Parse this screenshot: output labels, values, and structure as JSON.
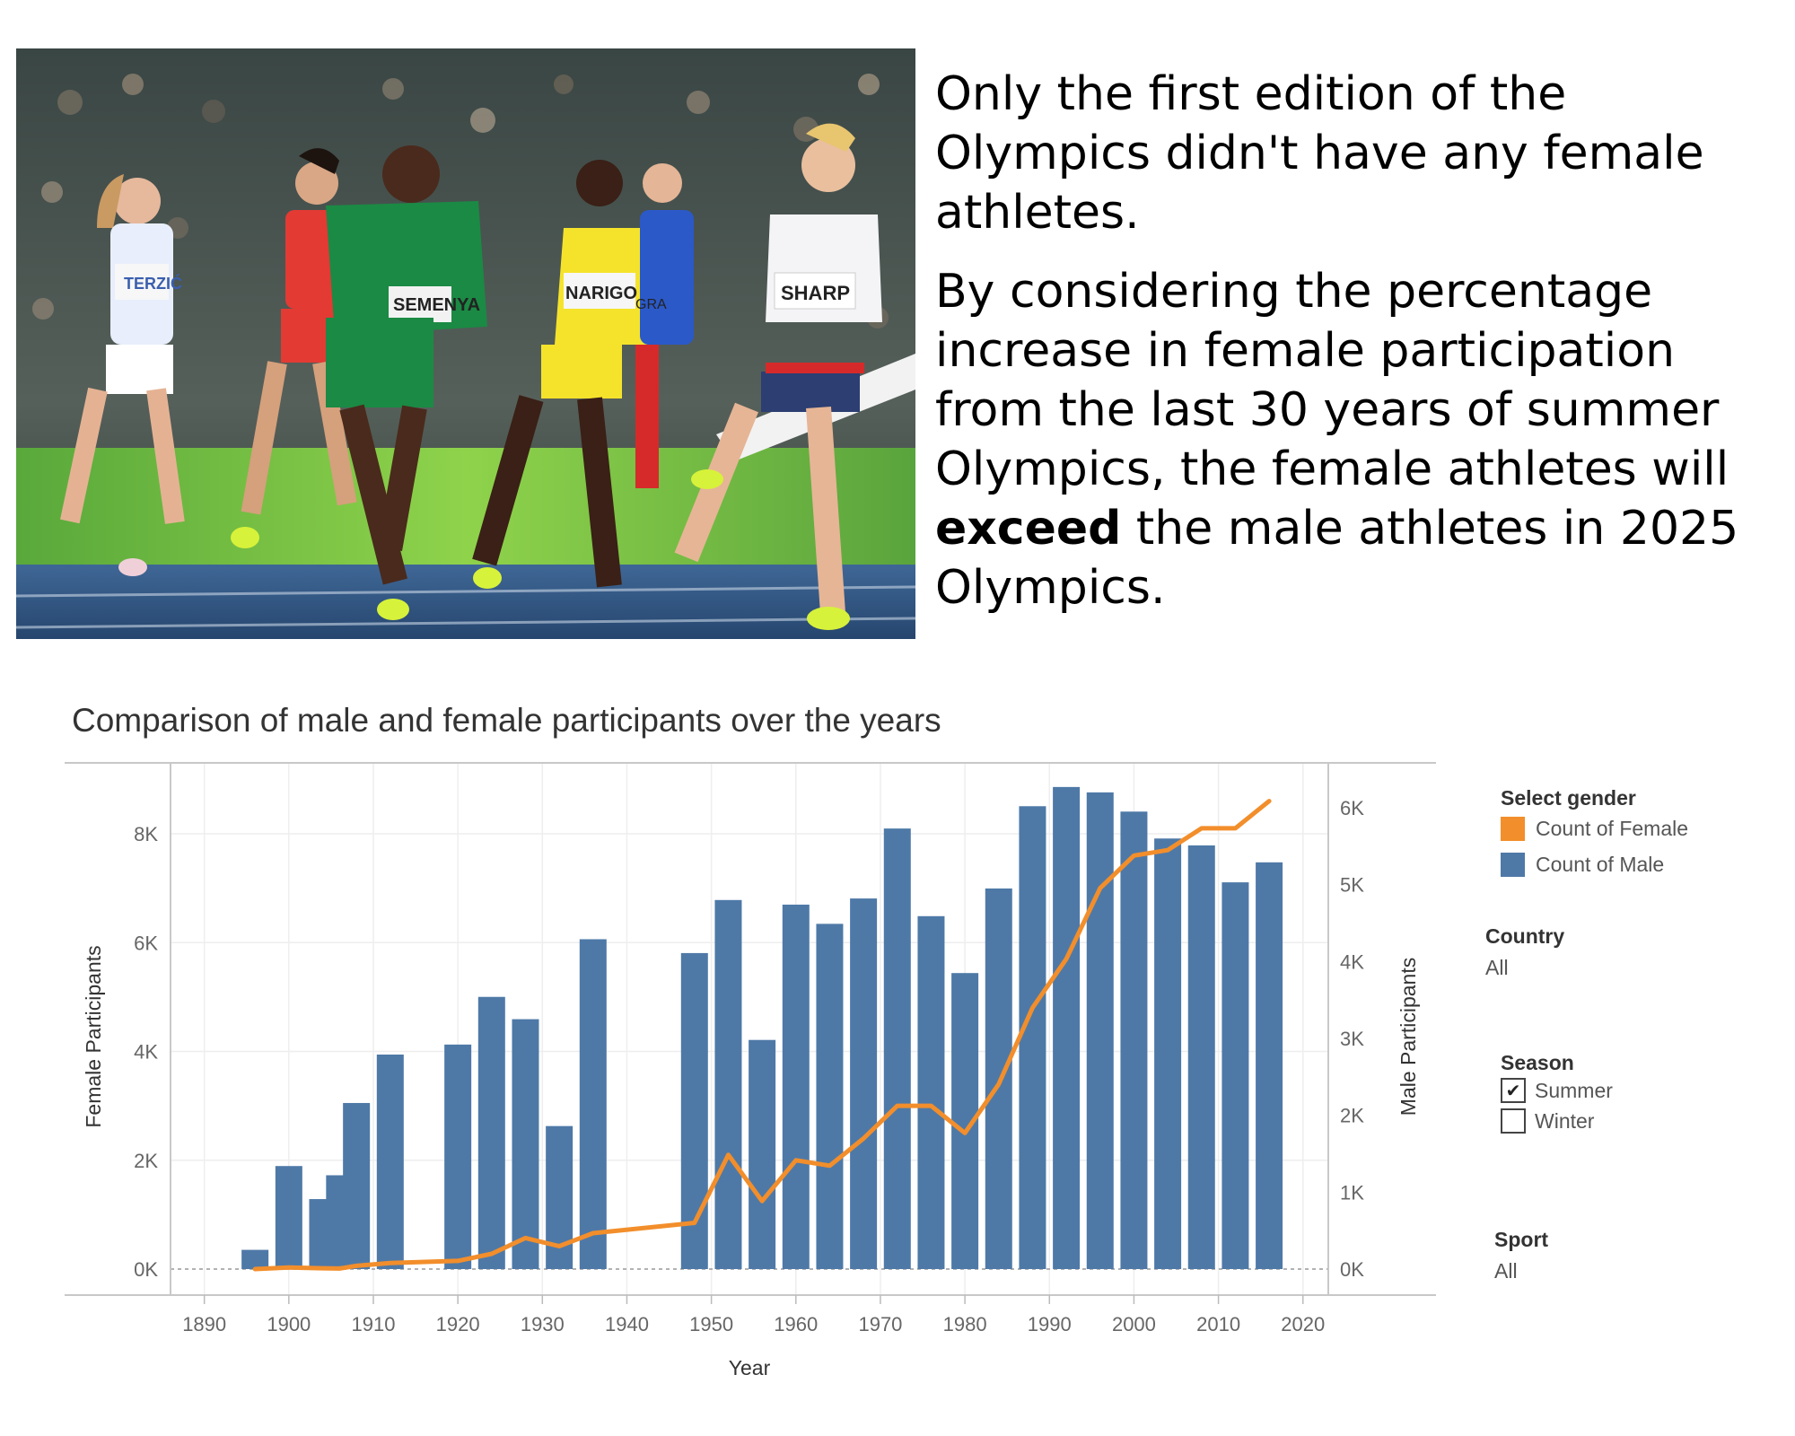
{
  "story": {
    "p1": "Only the first edition of the Olympics didn't have any female athletes.",
    "p2_pre": "By considering the percentage increase in female participation from the last 30 years of summer Olympics, the female athletes will ",
    "p2_bold": "exceed",
    "p2_post": " the male athletes in 2025 Olympics."
  },
  "photo": {
    "bibs": [
      "TERZIĆ",
      "SEMENYA",
      "NARIGO",
      "SHARP",
      "GRA"
    ],
    "colors": {
      "crowd": "#2d3b3a",
      "track": "#34567e",
      "banner": "#7cc442"
    }
  },
  "legend": {
    "title": "Select gender",
    "items": [
      {
        "label": "Count of Female",
        "color": "#f28e2b"
      },
      {
        "label": "Count of Male",
        "color": "#4e79a7"
      }
    ]
  },
  "filters": {
    "country": {
      "title": "Country",
      "value": "All"
    },
    "season": {
      "title": "Season",
      "options": [
        {
          "label": "Summer",
          "checked": true
        },
        {
          "label": "Winter",
          "checked": false
        }
      ]
    },
    "sport": {
      "title": "Sport",
      "value": "All"
    }
  },
  "chart_data": {
    "type": "bar",
    "title": "Comparison of male and female participants over the years",
    "xlabel": "Year",
    "ylabel_left": "Female Participants",
    "ylabel_right": "Male Participants",
    "x_ticks": [
      1890,
      1900,
      1910,
      1920,
      1930,
      1940,
      1950,
      1960,
      1970,
      1980,
      1990,
      2000,
      2010,
      2020
    ],
    "x_range": [
      1886,
      2023
    ],
    "y_left_range": [
      0,
      9000
    ],
    "y_left_ticks": [
      0,
      2000,
      4000,
      6000,
      8000
    ],
    "y_left_tick_labels": [
      "0K",
      "2K",
      "4K",
      "6K",
      "8K"
    ],
    "y_right_range": [
      0,
      6350
    ],
    "y_right_ticks": [
      0,
      1000,
      2000,
      3000,
      4000,
      5000,
      6000
    ],
    "y_right_tick_labels": [
      "0K",
      "1K",
      "2K",
      "3K",
      "4K",
      "5K",
      "6K"
    ],
    "grid": true,
    "series": [
      {
        "name": "Count of Male",
        "type": "bar",
        "axis": "right",
        "color": "#4e79a7",
        "x": [
          1896,
          1900,
          1904,
          1906,
          1908,
          1912,
          1920,
          1924,
          1928,
          1932,
          1936,
          1948,
          1952,
          1956,
          1960,
          1964,
          1968,
          1972,
          1976,
          1980,
          1984,
          1988,
          1992,
          1996,
          2000,
          2004,
          2008,
          2012,
          2016
        ],
        "values": [
          250,
          1340,
          910,
          1220,
          2160,
          2790,
          2920,
          3540,
          3250,
          1860,
          4290,
          4110,
          4800,
          2980,
          4740,
          4490,
          4820,
          5730,
          4590,
          3850,
          4950,
          6020,
          6270,
          6200,
          5950,
          5600,
          5510,
          5030,
          5290
        ]
      },
      {
        "name": "Count of Female",
        "type": "line",
        "axis": "left",
        "color": "#f28e2b",
        "x": [
          1896,
          1900,
          1904,
          1906,
          1908,
          1912,
          1920,
          1924,
          1928,
          1932,
          1936,
          1948,
          1952,
          1956,
          1960,
          1964,
          1968,
          1972,
          1976,
          1980,
          1984,
          1988,
          1992,
          1996,
          2000,
          2004,
          2008,
          2012,
          2016
        ],
        "values": [
          0,
          30,
          15,
          10,
          60,
          110,
          150,
          280,
          570,
          420,
          660,
          850,
          2100,
          1250,
          2000,
          1900,
          2400,
          3000,
          3000,
          2500,
          3400,
          4800,
          5700,
          7000,
          7600,
          7700,
          8100,
          8100,
          8600
        ]
      }
    ]
  }
}
